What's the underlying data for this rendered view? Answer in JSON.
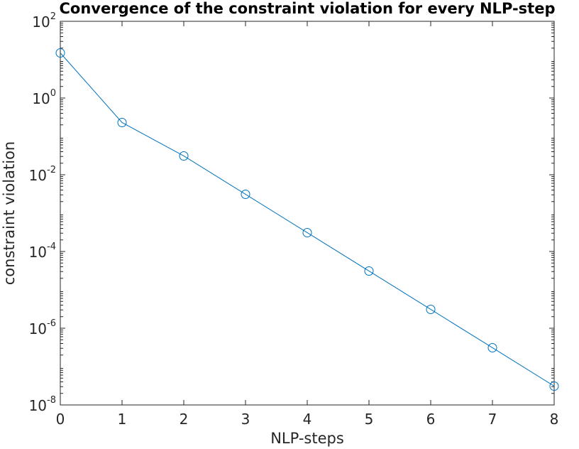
{
  "chart_data": {
    "type": "line",
    "title": "Convergence of the constraint violation for every NLP-step",
    "xlabel": "NLP-steps",
    "ylabel": "constraint violation",
    "x_scale": "linear",
    "y_scale": "log",
    "xlim": [
      0,
      8
    ],
    "ylim": [
      1e-08,
      100
    ],
    "x_ticks": [
      "0",
      "1",
      "2",
      "3",
      "4",
      "5",
      "6",
      "7",
      "8"
    ],
    "y_ticks": [
      {
        "base": "10",
        "exp": "-8",
        "value": 1e-08
      },
      {
        "base": "10",
        "exp": "-6",
        "value": 1e-06
      },
      {
        "base": "10",
        "exp": "-4",
        "value": 0.0001
      },
      {
        "base": "10",
        "exp": "-2",
        "value": 0.01
      },
      {
        "base": "10",
        "exp": "0",
        "value": 1
      },
      {
        "base": "10",
        "exp": "2",
        "value": 100
      }
    ],
    "grid": false,
    "series": [
      {
        "color": "#0072BD",
        "marker": "circle",
        "x": [
          0,
          1,
          2,
          3,
          4,
          5,
          6,
          7,
          8
        ],
        "y": [
          15,
          0.23,
          0.031,
          0.0031,
          0.00031,
          3.1e-05,
          3.1e-06,
          3.1e-07,
          3.1e-08
        ]
      }
    ]
  }
}
